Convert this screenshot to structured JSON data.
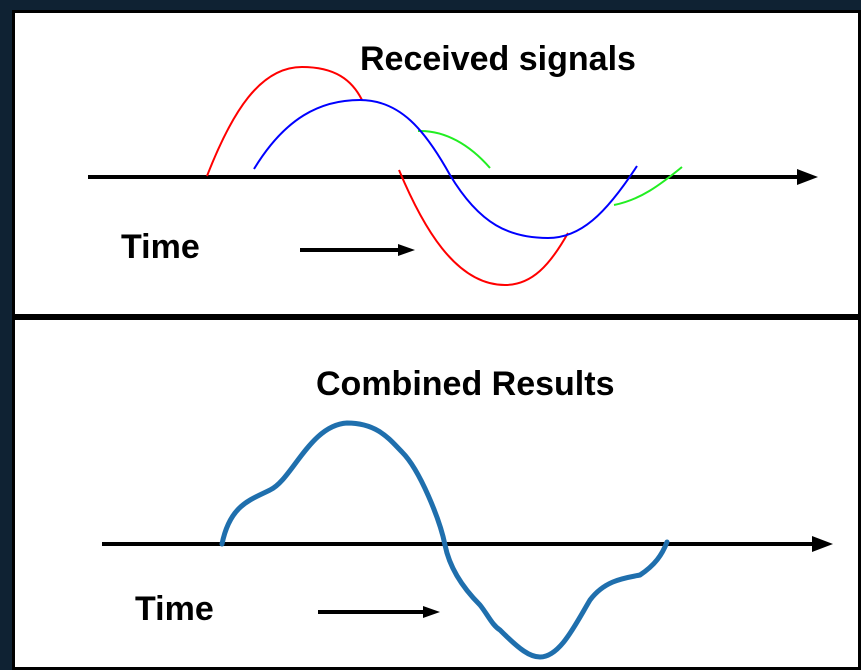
{
  "top_panel": {
    "title": "Received signals",
    "time_label": "Time"
  },
  "bottom_panel": {
    "title": "Combined Results",
    "time_label": "Time"
  },
  "colors": {
    "background": "#0f2233",
    "panel": "#ffffff",
    "axis": "#000000",
    "signal_red": "#ff0000",
    "signal_blue": "#0000ff",
    "signal_green": "#22ee22",
    "combined": "#1f6fad"
  }
}
